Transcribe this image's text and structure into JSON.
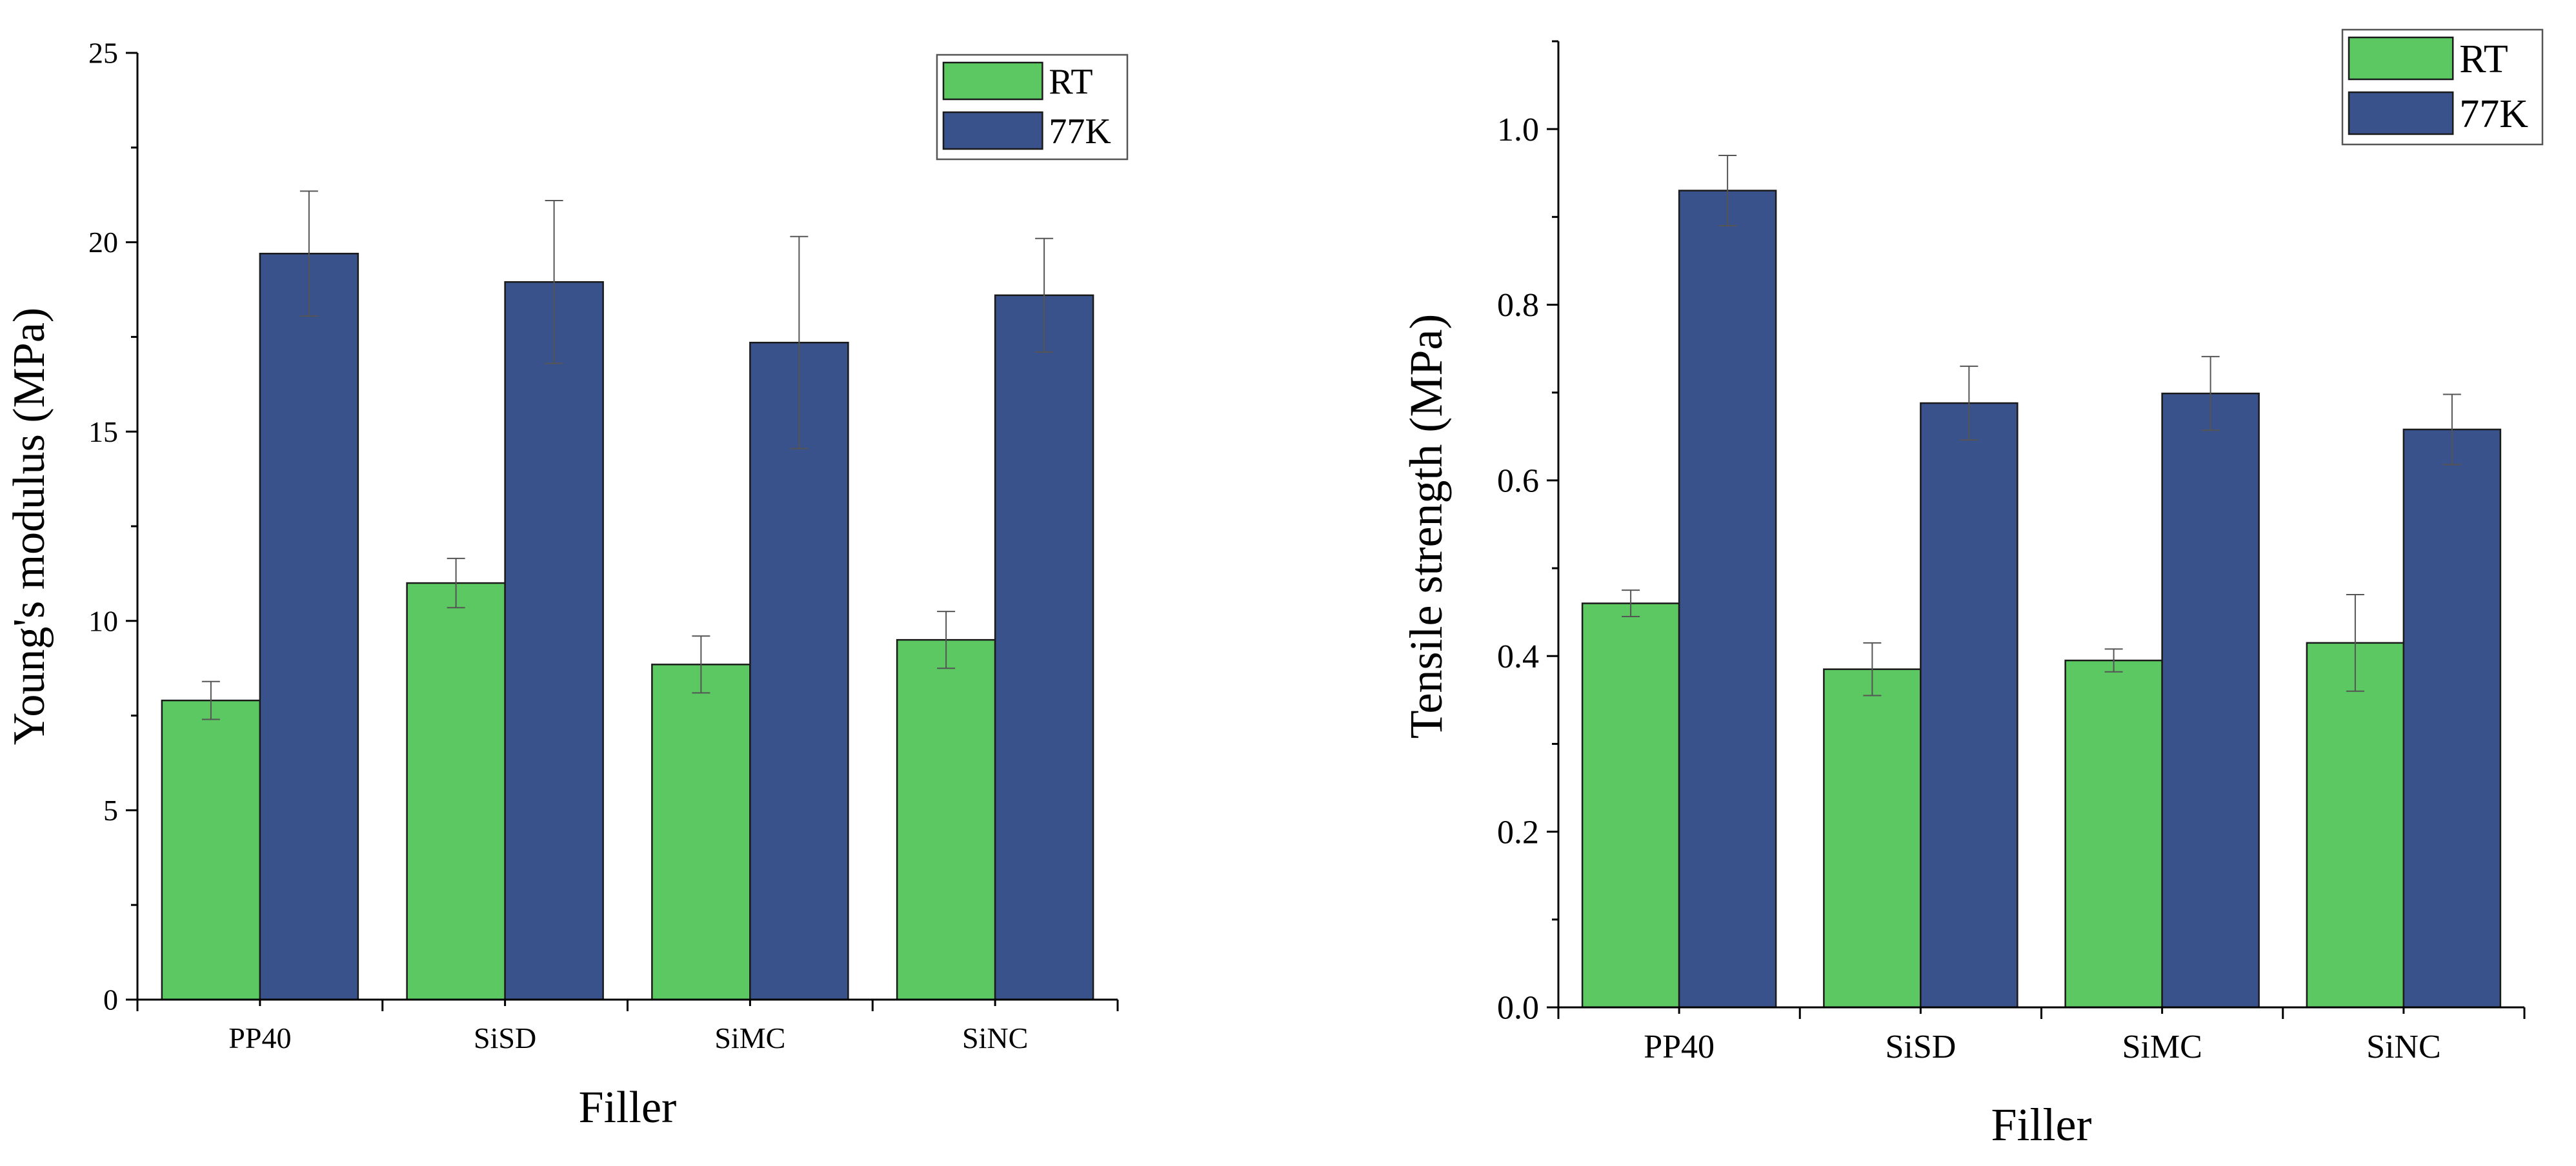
{
  "colors": {
    "RT": "#5bc862",
    "77K": "#3a528b"
  },
  "chart_data": [
    {
      "type": "bar",
      "title": "",
      "xlabel": "Filler",
      "ylabel": "Young's modulus (MPa)",
      "categories": [
        "PP40",
        "SiSD",
        "SiMC",
        "SiNC"
      ],
      "ylim": [
        0,
        25
      ],
      "yticks": [
        0,
        5,
        10,
        15,
        20,
        25
      ],
      "ytick_labels": [
        "0",
        "5",
        "10",
        "15",
        "20",
        "25"
      ],
      "legend_position": "top-right",
      "series": [
        {
          "name": "RT",
          "color": "#5bc862",
          "values": [
            7.9,
            11.0,
            8.85,
            9.5
          ],
          "errors": [
            0.5,
            0.65,
            0.75,
            0.75
          ]
        },
        {
          "name": "77K",
          "color": "#3a528b",
          "values": [
            19.7,
            18.95,
            17.35,
            18.6
          ],
          "errors": [
            1.65,
            2.15,
            2.8,
            1.5
          ]
        }
      ]
    },
    {
      "type": "bar",
      "title": "",
      "xlabel": "Filler",
      "ylabel": "Tensile strength (MPa)",
      "categories": [
        "PP40",
        "SiSD",
        "SiMC",
        "SiNC"
      ],
      "ylim": [
        0,
        1.1
      ],
      "yticks": [
        0,
        0.2,
        0.4,
        0.6,
        0.8,
        1.0
      ],
      "ytick_labels": [
        "0.0",
        "0.2",
        "0.4",
        "0.6",
        "0.8",
        "1.0"
      ],
      "legend_position": "top-right",
      "series": [
        {
          "name": "RT",
          "color": "#5bc862",
          "values": [
            0.46,
            0.385,
            0.395,
            0.415
          ],
          "errors": [
            0.015,
            0.03,
            0.013,
            0.055
          ]
        },
        {
          "name": "77K",
          "color": "#3a528b",
          "values": [
            0.93,
            0.688,
            0.699,
            0.658
          ],
          "errors": [
            0.04,
            0.042,
            0.042,
            0.04
          ]
        }
      ]
    }
  ]
}
